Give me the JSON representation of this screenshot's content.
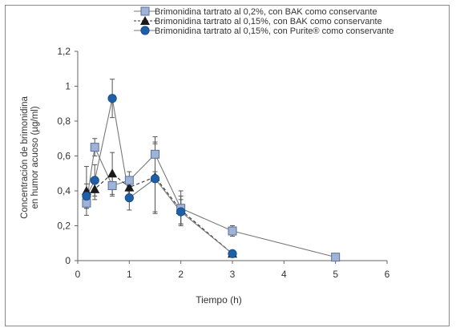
{
  "chart_data": {
    "type": "line",
    "xlabel": "Tiempo (h)",
    "ylabel_lines": [
      "Concentración de brimonidina",
      "en humor acuoso (µg/ml)"
    ],
    "xlim": [
      0,
      6
    ],
    "ylim": [
      0,
      1.2
    ],
    "x_ticks": [
      "0",
      "1",
      "2",
      "3",
      "4",
      "5",
      "6"
    ],
    "y_ticks": [
      "0",
      "0,2",
      "0,4",
      "0,6",
      "0,8",
      "1",
      "1,2"
    ],
    "x_tick_values": [
      0,
      1,
      2,
      3,
      4,
      5,
      6
    ],
    "y_tick_values": [
      0,
      0.2,
      0.4,
      0.6,
      0.8,
      1.0,
      1.2
    ],
    "grid": false,
    "legend_position": "top-right",
    "series": [
      {
        "name": "Brimonidina tartrato al 0,2%, con BAK como conservante",
        "marker": "square",
        "line_style": "solid",
        "color": "#9fb3d6",
        "x": [
          0.17,
          0.33,
          0.67,
          1.0,
          1.5,
          2.0,
          3.0,
          5.0
        ],
        "y": [
          0.33,
          0.65,
          0.43,
          0.46,
          0.61,
          0.3,
          0.17,
          0.02
        ],
        "err": [
          0.03,
          0.05,
          0.06,
          0.05,
          0.1,
          0.1,
          0.03,
          0.01
        ]
      },
      {
        "name": "Brimonidina tartrato al 0,15%, con BAK como conservante",
        "marker": "triangle",
        "line_style": "dashed",
        "color": "#1a1a1a",
        "x": [
          0.17,
          0.33,
          0.67,
          1.0,
          1.5,
          2.0,
          3.0
        ],
        "y": [
          0.4,
          0.41,
          0.5,
          0.42,
          0.48,
          0.29,
          0.04
        ],
        "err": [
          0.14,
          0.06,
          0.12,
          0.06,
          0.2,
          0.08,
          0.01
        ]
      },
      {
        "name": "Brimonidina tartrato al 0,15%, con Purite® como conservante",
        "marker": "circle",
        "line_style": "solid",
        "color": "#1f5fa8",
        "x": [
          0.17,
          0.33,
          0.67,
          1.0,
          1.5,
          2.0,
          3.0
        ],
        "y": [
          0.37,
          0.46,
          0.93,
          0.36,
          0.47,
          0.28,
          0.04
        ],
        "err": [
          0.07,
          0.09,
          0.11,
          0.07,
          0.2,
          0.07,
          0.01
        ]
      }
    ]
  }
}
